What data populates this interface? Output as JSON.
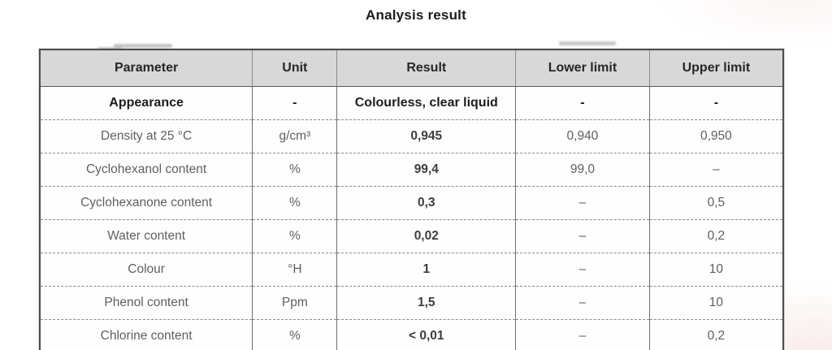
{
  "page": {
    "title": "Analysis result"
  },
  "table": {
    "columns": [
      "Parameter",
      "Unit",
      "Result",
      "Lower limit",
      "Upper limit"
    ],
    "rows": [
      {
        "parameter": "Appearance",
        "unit": "-",
        "result": "Colourless, clear liquid",
        "lower": "-",
        "upper": "-",
        "emphasis": true
      },
      {
        "parameter": "Density at 25 °C",
        "unit": "g/cm³",
        "result": "0,945",
        "lower": "0,940",
        "upper": "0,950",
        "emphasis": false
      },
      {
        "parameter": "Cyclohexanol content",
        "unit": "%",
        "result": "99,4",
        "lower": "99,0",
        "upper": "–",
        "emphasis": false
      },
      {
        "parameter": "Cyclohexanone content",
        "unit": "%",
        "result": "0,3",
        "lower": "–",
        "upper": "0,5",
        "emphasis": false
      },
      {
        "parameter": "Water content",
        "unit": "%",
        "result": "0,02",
        "lower": "–",
        "upper": "0,2",
        "emphasis": false
      },
      {
        "parameter": "Colour",
        "unit": "°H",
        "result": "1",
        "lower": "–",
        "upper": "10",
        "emphasis": false
      },
      {
        "parameter": "Phenol content",
        "unit": "Ppm",
        "result": "1,5",
        "lower": "–",
        "upper": "10",
        "emphasis": false
      },
      {
        "parameter": "Chlorine content",
        "unit": "%",
        "result": "< 0,01",
        "lower": "–",
        "upper": "0,2",
        "emphasis": false
      }
    ]
  },
  "colors": {
    "header_background": "#d8d8d8",
    "header_text": "#262626",
    "body_text": "#5f5f5f",
    "result_text": "#3d3d3d",
    "border": "#4d4d4d",
    "page_background": "#ffffff"
  }
}
